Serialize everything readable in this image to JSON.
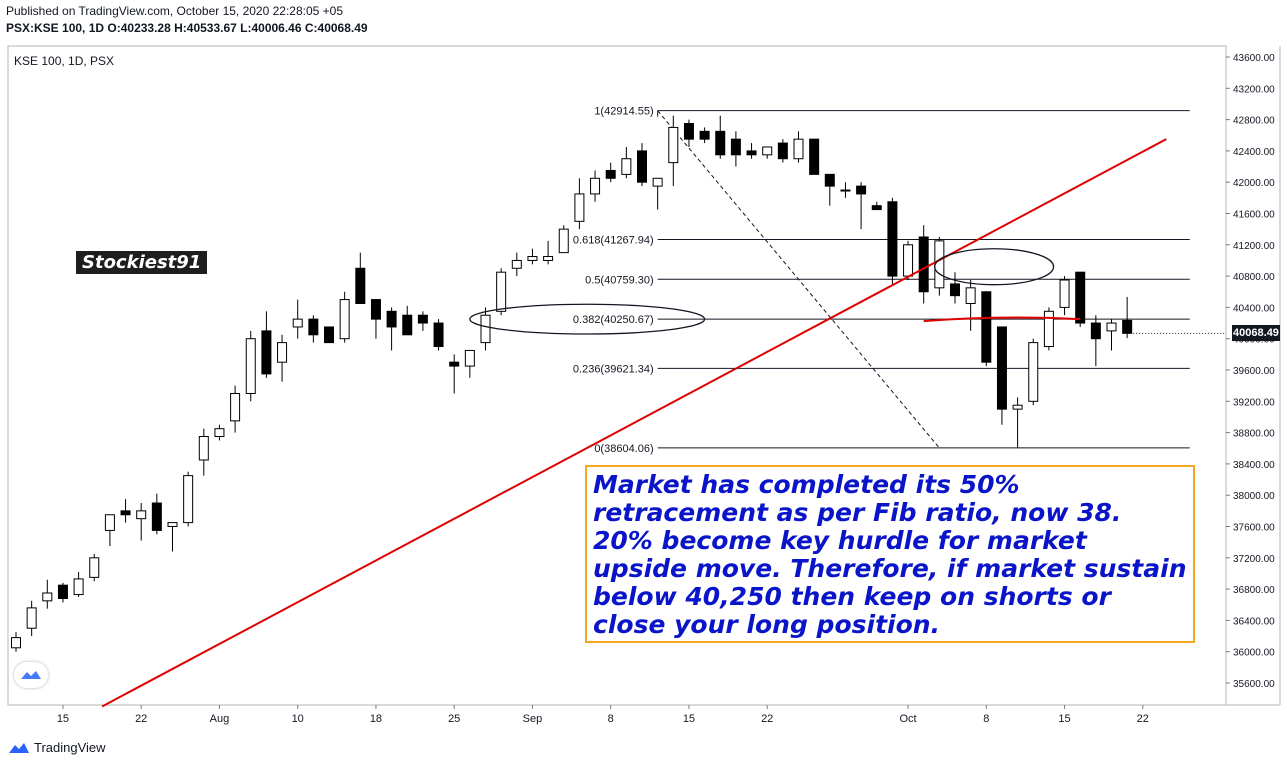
{
  "header": {
    "published": "Published on TradingView.com, October 15, 2020 22:28:05 +05",
    "symbol_line_prefix": "PSX:KSE 100, 1D",
    "ohlc": "O:40233.28 H:40533.67 L:40006.46 C:40068.49"
  },
  "pane_label": "KSE 100, 1D, PSX",
  "watermark": "Stockiest91",
  "annotation": "Market has completed its 50% retracement as per Fib ratio, now 38. 20% become key hurdle for market upside move. Therefore, if market sustain below 40,250 then keep on shorts or close your long position.",
  "footer": {
    "brand": "TradingView"
  },
  "colors": {
    "up": "#ffffff",
    "down": "#000000",
    "trend": "#e00000",
    "annot_border": "#f5a623",
    "annot_text": "#0a14c8"
  },
  "chart_data": {
    "type": "candlestick",
    "y_axis": {
      "ylim": [
        35400,
        43800
      ],
      "ticks": [
        35600,
        36000,
        36400,
        36800,
        37200,
        37600,
        38000,
        38400,
        38800,
        39200,
        39600,
        40000,
        40400,
        40800,
        41200,
        41600,
        42000,
        42400,
        42800,
        43200,
        43600
      ],
      "tick_labels": [
        "35600.00",
        "36000.00",
        "36400.00",
        "36800.00",
        "37200.00",
        "37600.00",
        "38000.00",
        "38400.00",
        "38800.00",
        "39200.00",
        "39600.00",
        "40000.00",
        "40400.00",
        "40800.00",
        "41200.00",
        "41600.00",
        "42000.00",
        "42400.00",
        "42800.00",
        "43200.00",
        "43600.00"
      ]
    },
    "x_axis": {
      "labels": [
        {
          "text": "15",
          "i": 3
        },
        {
          "text": "22",
          "i": 8
        },
        {
          "text": "Aug",
          "i": 13
        },
        {
          "text": "10",
          "i": 18
        },
        {
          "text": "18",
          "i": 23
        },
        {
          "text": "25",
          "i": 28
        },
        {
          "text": "Sep",
          "i": 33
        },
        {
          "text": "8",
          "i": 38
        },
        {
          "text": "15",
          "i": 43
        },
        {
          "text": "22",
          "i": 48
        },
        {
          "text": "Oct",
          "i": 57
        },
        {
          "text": "8",
          "i": 62
        },
        {
          "text": "15",
          "i": 67
        },
        {
          "text": "22",
          "i": 72
        }
      ]
    },
    "last_price": {
      "value": 40068.49,
      "label": "40068.49"
    },
    "fib_levels": [
      {
        "label": "1(42914.55)",
        "value": 42914.55
      },
      {
        "label": "0.618(41267.94)",
        "value": 41267.94
      },
      {
        "label": "0.5(40759.30)",
        "value": 40759.3
      },
      {
        "label": "0.382(40250.67)",
        "value": 40250.67
      },
      {
        "label": "0.236(39621.34)",
        "value": 39621.34
      },
      {
        "label": "0(38604.06)",
        "value": 38604.06
      }
    ],
    "fib_range": {
      "i_start": 41,
      "i_end": 75
    },
    "swing_line": {
      "from": {
        "i": 41,
        "v": 42914.55
      },
      "to": {
        "i": 59,
        "v": 38604.06
      }
    },
    "trend_line": {
      "from": {
        "i": 5.5,
        "v": 35300
      },
      "to": {
        "i": 73.5,
        "v": 42550
      }
    },
    "red_level": {
      "i_start": 58,
      "i_end": 68,
      "v": 40250
    },
    "ellipses": [
      {
        "i_center": 36.5,
        "v_center": 40250,
        "i_radius": 7.5,
        "v_radius": 190
      },
      {
        "i_center": 62.5,
        "v_center": 40920,
        "i_radius": 3.8,
        "v_radius": 230
      }
    ],
    "candles": [
      {
        "o": 36050,
        "h": 36250,
        "l": 36000,
        "c": 36180
      },
      {
        "o": 36300,
        "h": 36650,
        "l": 36200,
        "c": 36560
      },
      {
        "o": 36650,
        "h": 36920,
        "l": 36550,
        "c": 36750
      },
      {
        "o": 36850,
        "h": 36880,
        "l": 36630,
        "c": 36680
      },
      {
        "o": 36730,
        "h": 37020,
        "l": 36700,
        "c": 36930
      },
      {
        "o": 36950,
        "h": 37250,
        "l": 36900,
        "c": 37200
      },
      {
        "o": 37550,
        "h": 37700,
        "l": 37350,
        "c": 37750
      },
      {
        "o": 37800,
        "h": 37950,
        "l": 37650,
        "c": 37750
      },
      {
        "o": 37700,
        "h": 37900,
        "l": 37420,
        "c": 37800
      },
      {
        "o": 37900,
        "h": 38020,
        "l": 37500,
        "c": 37550
      },
      {
        "o": 37600,
        "h": 37650,
        "l": 37280,
        "c": 37650
      },
      {
        "o": 37650,
        "h": 38300,
        "l": 37600,
        "c": 38250
      },
      {
        "o": 38450,
        "h": 38850,
        "l": 38250,
        "c": 38750
      },
      {
        "o": 38750,
        "h": 38900,
        "l": 38700,
        "c": 38850
      },
      {
        "o": 38950,
        "h": 39400,
        "l": 38800,
        "c": 39300
      },
      {
        "o": 39300,
        "h": 40100,
        "l": 39200,
        "c": 40000
      },
      {
        "o": 40100,
        "h": 40350,
        "l": 39500,
        "c": 39550
      },
      {
        "o": 39700,
        "h": 40050,
        "l": 39450,
        "c": 39950
      },
      {
        "o": 40150,
        "h": 40500,
        "l": 40000,
        "c": 40250
      },
      {
        "o": 40250,
        "h": 40300,
        "l": 39950,
        "c": 40050
      },
      {
        "o": 40150,
        "h": 40150,
        "l": 39950,
        "c": 39950
      },
      {
        "o": 40000,
        "h": 40600,
        "l": 39950,
        "c": 40500
      },
      {
        "o": 40900,
        "h": 41100,
        "l": 40450,
        "c": 40450
      },
      {
        "o": 40500,
        "h": 40500,
        "l": 40000,
        "c": 40250
      },
      {
        "o": 40350,
        "h": 40400,
        "l": 39850,
        "c": 40150
      },
      {
        "o": 40300,
        "h": 40420,
        "l": 40100,
        "c": 40050
      },
      {
        "o": 40300,
        "h": 40350,
        "l": 40100,
        "c": 40200
      },
      {
        "o": 40200,
        "h": 40250,
        "l": 39850,
        "c": 39900
      },
      {
        "o": 39700,
        "h": 39800,
        "l": 39300,
        "c": 39650
      },
      {
        "o": 39650,
        "h": 39850,
        "l": 39500,
        "c": 39850
      },
      {
        "o": 39950,
        "h": 40400,
        "l": 39850,
        "c": 40300
      },
      {
        "o": 40350,
        "h": 40900,
        "l": 40300,
        "c": 40850
      },
      {
        "o": 40900,
        "h": 41100,
        "l": 40800,
        "c": 41000
      },
      {
        "o": 41000,
        "h": 41150,
        "l": 40950,
        "c": 41050
      },
      {
        "o": 41000,
        "h": 41250,
        "l": 40950,
        "c": 41050
      },
      {
        "o": 41100,
        "h": 41450,
        "l": 41100,
        "c": 41400
      },
      {
        "o": 41500,
        "h": 42050,
        "l": 41400,
        "c": 41850
      },
      {
        "o": 41850,
        "h": 42150,
        "l": 41750,
        "c": 42050
      },
      {
        "o": 42150,
        "h": 42250,
        "l": 42000,
        "c": 42050
      },
      {
        "o": 42100,
        "h": 42450,
        "l": 42050,
        "c": 42300
      },
      {
        "o": 42400,
        "h": 42500,
        "l": 41950,
        "c": 42000
      },
      {
        "o": 41950,
        "h": 42000,
        "l": 41650,
        "c": 42050
      },
      {
        "o": 42250,
        "h": 42850,
        "l": 41950,
        "c": 42700
      },
      {
        "o": 42750,
        "h": 42800,
        "l": 42450,
        "c": 42550
      },
      {
        "o": 42650,
        "h": 42700,
        "l": 42500,
        "c": 42550
      },
      {
        "o": 42650,
        "h": 42850,
        "l": 42300,
        "c": 42350
      },
      {
        "o": 42550,
        "h": 42650,
        "l": 42200,
        "c": 42350
      },
      {
        "o": 42400,
        "h": 42500,
        "l": 42300,
        "c": 42350
      },
      {
        "o": 42350,
        "h": 42450,
        "l": 42300,
        "c": 42450
      },
      {
        "o": 42500,
        "h": 42550,
        "l": 42250,
        "c": 42300
      },
      {
        "o": 42300,
        "h": 42650,
        "l": 42250,
        "c": 42550
      },
      {
        "o": 42550,
        "h": 42550,
        "l": 42150,
        "c": 42100
      },
      {
        "o": 42100,
        "h": 42100,
        "l": 41700,
        "c": 41950
      },
      {
        "o": 41900,
        "h": 42000,
        "l": 41800,
        "c": 41900
      },
      {
        "o": 41950,
        "h": 42000,
        "l": 41400,
        "c": 41850
      },
      {
        "o": 41700,
        "h": 41750,
        "l": 41650,
        "c": 41650
      },
      {
        "o": 41750,
        "h": 41800,
        "l": 40700,
        "c": 40800
      },
      {
        "o": 40800,
        "h": 41250,
        "l": 40750,
        "c": 41200
      },
      {
        "o": 41300,
        "h": 41450,
        "l": 40450,
        "c": 40600
      },
      {
        "o": 40650,
        "h": 41300,
        "l": 40550,
        "c": 41250
      },
      {
        "o": 40700,
        "h": 40850,
        "l": 40450,
        "c": 40550
      },
      {
        "o": 40450,
        "h": 40750,
        "l": 40100,
        "c": 40650
      }
    ],
    "candles_tail": [
      {
        "o": 40600,
        "h": 40600,
        "l": 39650,
        "c": 39700
      },
      {
        "o": 40150,
        "h": 40150,
        "l": 38900,
        "c": 39100
      },
      {
        "o": 39100,
        "h": 39250,
        "l": 38600,
        "c": 39150
      },
      {
        "o": 39200,
        "h": 40000,
        "l": 39150,
        "c": 39950
      },
      {
        "o": 39900,
        "h": 40400,
        "l": 39850,
        "c": 40350
      },
      {
        "o": 40400,
        "h": 40800,
        "l": 40300,
        "c": 40750
      },
      {
        "o": 40850,
        "h": 40850,
        "l": 40150,
        "c": 40200
      },
      {
        "o": 40200,
        "h": 40300,
        "l": 39650,
        "c": 40000
      },
      {
        "o": 40100,
        "h": 40250,
        "l": 39850,
        "c": 40200
      },
      {
        "o": 40233.28,
        "h": 40533.67,
        "l": 40006.46,
        "c": 40068.49
      }
    ]
  }
}
